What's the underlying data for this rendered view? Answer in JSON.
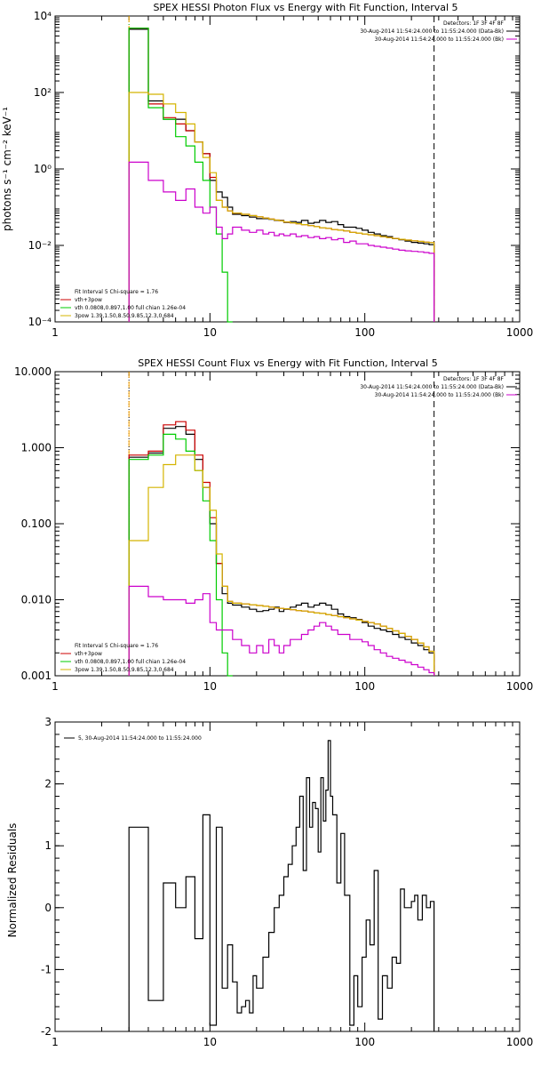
{
  "chart_data": [
    {
      "type": "line",
      "title": "SPEX HESSI Photon Flux vs Energy with Fit Function, Interval 5",
      "xlabel": "",
      "ylabel": "photons s⁻¹ cm⁻² keV⁻¹",
      "xscale": "log",
      "yscale": "log",
      "xlim": [
        1,
        1000
      ],
      "ylim": [
        0.0001,
        10000
      ],
      "xticks": [
        1,
        10,
        100,
        1000
      ],
      "xtick_labels": [
        "1",
        "10",
        "100",
        "1000"
      ],
      "yticks": [
        0.0001,
        0.01,
        1,
        100,
        10000
      ],
      "ytick_labels": [
        "10⁻⁴",
        "10⁻²",
        "10⁰",
        "10²",
        "10⁴"
      ],
      "vlines": [
        {
          "x": 3,
          "style": "dotted",
          "color": "#009900"
        },
        {
          "x": 3,
          "style": "dashed",
          "color": "#ffa500"
        },
        {
          "x": 280,
          "style": "dashed",
          "color": "#000000"
        }
      ],
      "legend_top_right": [
        {
          "text": "Detectors: 1F 3F 4F 8F",
          "color": "#000000"
        },
        {
          "text": "30-Aug-2014 11:54:24.000 to 11:55:24.000 (Data-Bk)",
          "color": "#000000"
        },
        {
          "text": "30-Aug-2014 11:54:24.000 to 11:55:24.000 (Bk)",
          "color": "#cc00cc"
        }
      ],
      "legend_bottom_left": [
        {
          "text": "Fit Interval 5   Chi-square = 1.76",
          "color": "#000000"
        },
        {
          "text": "vth+3pow",
          "color": "#cc0000"
        },
        {
          "text": "vth 0.0808,0.897,1.00  full chian 1.26e-04",
          "color": "#00cc00"
        },
        {
          "text": "3pow 1.39,1.50,8.50,9.85,12.3,0.684",
          "color": "#d4b400"
        }
      ],
      "x_edges": [
        3,
        4,
        5,
        6,
        7,
        8,
        9,
        10,
        11,
        12,
        13,
        14,
        16,
        18,
        20,
        22,
        24,
        26,
        28,
        30,
        33,
        36,
        39,
        43,
        47,
        51,
        56,
        61,
        67,
        73,
        80,
        88,
        96,
        105,
        115,
        126,
        138,
        151,
        166,
        182,
        200,
        220,
        240,
        260,
        280
      ],
      "series": [
        {
          "name": "Data-Bk",
          "color": "#000000",
          "values": [
            4500,
            60,
            20,
            20,
            10,
            5,
            2.5,
            0.5,
            0.25,
            0.18,
            0.1,
            0.065,
            0.06,
            0.055,
            0.05,
            0.05,
            0.048,
            0.045,
            0.045,
            0.04,
            0.042,
            0.04,
            0.045,
            0.038,
            0.04,
            0.045,
            0.04,
            0.042,
            0.035,
            0.03,
            0.03,
            0.028,
            0.025,
            0.022,
            0.02,
            0.018,
            0.017,
            0.015,
            0.014,
            0.013,
            0.012,
            0.0115,
            0.011,
            0.0105
          ]
        },
        {
          "name": "vth+3pow",
          "color": "#cc0000",
          "values": [
            4800,
            50,
            22,
            15,
            10,
            5,
            2.5,
            0.6,
            0.15,
            0.1,
            0.08,
            0.07,
            0.065,
            0.06,
            0.056,
            0.052,
            0.049,
            0.046,
            0.044,
            0.041,
            0.039,
            0.037,
            0.035,
            0.033,
            0.031,
            0.029,
            0.028,
            0.026,
            0.025,
            0.024,
            0.022,
            0.021,
            0.02,
            0.019,
            0.018,
            0.017,
            0.016,
            0.0152,
            0.0145,
            0.0138,
            0.0132,
            0.0127,
            0.0122,
            0.0118
          ]
        },
        {
          "name": "vth",
          "color": "#00cc00",
          "values": [
            4800,
            40,
            20,
            7,
            4,
            1.5,
            0.5,
            0.1,
            0.02,
            0.002,
            0.0001
          ]
        },
        {
          "name": "3pow",
          "color": "#d4b400",
          "values": [
            100,
            90,
            50,
            30,
            15,
            5,
            2,
            0.8,
            0.15,
            0.1,
            0.08,
            0.07,
            0.065,
            0.06,
            0.056,
            0.052,
            0.049,
            0.046,
            0.044,
            0.041,
            0.039,
            0.037,
            0.035,
            0.033,
            0.031,
            0.029,
            0.028,
            0.026,
            0.025,
            0.024,
            0.022,
            0.021,
            0.02,
            0.019,
            0.018,
            0.017,
            0.016,
            0.0152,
            0.0145,
            0.0138,
            0.0132,
            0.0127,
            0.0122,
            0.0118
          ]
        },
        {
          "name": "Bk",
          "color": "#cc00cc",
          "values": [
            1.5,
            0.5,
            0.25,
            0.15,
            0.3,
            0.1,
            0.07,
            0.1,
            0.03,
            0.015,
            0.02,
            0.03,
            0.025,
            0.022,
            0.025,
            0.02,
            0.022,
            0.018,
            0.02,
            0.018,
            0.02,
            0.017,
            0.018,
            0.016,
            0.017,
            0.015,
            0.016,
            0.014,
            0.015,
            0.012,
            0.013,
            0.011,
            0.011,
            0.01,
            0.0095,
            0.009,
            0.0085,
            0.008,
            0.0075,
            0.0072,
            0.007,
            0.0068,
            0.0065,
            0.0062
          ]
        }
      ]
    },
    {
      "type": "line",
      "title": "SPEX HESSI Count Flux vs Energy with Fit Function, Interval 5",
      "xlabel": "",
      "ylabel": "",
      "xscale": "log",
      "yscale": "log",
      "xlim": [
        1,
        1000
      ],
      "ylim": [
        0.001,
        10
      ],
      "xticks": [
        1,
        10,
        100,
        1000
      ],
      "xtick_labels": [
        "1",
        "10",
        "100",
        "1000"
      ],
      "yticks": [
        0.001,
        0.01,
        0.1,
        1,
        10
      ],
      "ytick_labels": [
        "0.001",
        "0.010",
        "0.100",
        "1.000",
        "10.000"
      ],
      "vlines": [
        {
          "x": 3,
          "style": "dotted",
          "color": "#000000"
        },
        {
          "x": 3,
          "style": "dashed",
          "color": "#ffa500"
        },
        {
          "x": 280,
          "style": "dashed",
          "color": "#000000"
        }
      ],
      "legend_top_right": [
        {
          "text": "Detectors: 1F 3F 4F 8F",
          "color": "#000000"
        },
        {
          "text": "30-Aug-2014 11:54:24.000 to 11:55:24.000 (Data-Bk)",
          "color": "#000000"
        },
        {
          "text": "30-Aug-2014 11:54:24.000 to 11:55:24.000 (Bk)",
          "color": "#cc00cc"
        }
      ],
      "legend_bottom_left": [
        {
          "text": "Fit Interval 5   Chi-square = 1.76",
          "color": "#000000"
        },
        {
          "text": "vth+3pow",
          "color": "#cc0000"
        },
        {
          "text": "vth 0.0808,0.897,1.00  full chian 1.26e-04",
          "color": "#00cc00"
        },
        {
          "text": "3pow 1.39,1.50,8.50,9.85,12.3,0.684",
          "color": "#d4b400"
        }
      ],
      "x_edges": [
        3,
        4,
        5,
        6,
        7,
        8,
        9,
        10,
        11,
        12,
        13,
        14,
        16,
        18,
        20,
        22,
        24,
        26,
        28,
        30,
        33,
        36,
        39,
        43,
        47,
        51,
        56,
        61,
        67,
        73,
        80,
        88,
        96,
        105,
        115,
        126,
        138,
        151,
        166,
        182,
        200,
        220,
        240,
        260,
        280
      ],
      "series": [
        {
          "name": "Data-Bk",
          "color": "#000000",
          "values": [
            0.75,
            0.85,
            1.8,
            1.9,
            1.5,
            0.7,
            0.3,
            0.1,
            0.03,
            0.012,
            0.009,
            0.0085,
            0.008,
            0.0075,
            0.007,
            0.0072,
            0.0075,
            0.008,
            0.007,
            0.0075,
            0.008,
            0.0085,
            0.009,
            0.008,
            0.0085,
            0.009,
            0.0085,
            0.0075,
            0.0065,
            0.006,
            0.0058,
            0.0055,
            0.005,
            0.0045,
            0.0042,
            0.004,
            0.0038,
            0.0035,
            0.0032,
            0.003,
            0.0027,
            0.0025,
            0.0022,
            0.002
          ]
        },
        {
          "name": "vth+3pow",
          "color": "#cc0000",
          "values": [
            0.8,
            0.9,
            2.0,
            2.2,
            1.7,
            0.8,
            0.35,
            0.12,
            0.03,
            0.015,
            0.0095,
            0.009,
            0.0088,
            0.0086,
            0.0084,
            0.0082,
            0.008,
            0.0078,
            0.0077,
            0.0076,
            0.0074,
            0.0072,
            0.0071,
            0.0069,
            0.0067,
            0.0066,
            0.0064,
            0.0062,
            0.006,
            0.0058,
            0.0056,
            0.0054,
            0.0052,
            0.005,
            0.0048,
            0.0045,
            0.0042,
            0.0039,
            0.0036,
            0.0033,
            0.003,
            0.0027,
            0.0024,
            0.0021
          ]
        },
        {
          "name": "vth",
          "color": "#00cc00",
          "values": [
            0.7,
            0.8,
            1.5,
            1.3,
            0.9,
            0.5,
            0.2,
            0.06,
            0.01,
            0.002,
            0.0009
          ]
        },
        {
          "name": "3pow",
          "color": "#d4b400",
          "values": [
            0.06,
            0.3,
            0.6,
            0.8,
            0.8,
            0.5,
            0.3,
            0.15,
            0.04,
            0.015,
            0.0095,
            0.009,
            0.0088,
            0.0086,
            0.0084,
            0.0082,
            0.008,
            0.0078,
            0.0077,
            0.0076,
            0.0074,
            0.0072,
            0.0071,
            0.0069,
            0.0067,
            0.0066,
            0.0064,
            0.0062,
            0.006,
            0.0058,
            0.0056,
            0.0054,
            0.0052,
            0.005,
            0.0048,
            0.0045,
            0.0042,
            0.0039,
            0.0036,
            0.0033,
            0.003,
            0.0027,
            0.0024,
            0.0021
          ]
        },
        {
          "name": "Bk",
          "color": "#cc00cc",
          "values": [
            0.015,
            0.011,
            0.01,
            0.01,
            0.009,
            0.01,
            0.012,
            0.005,
            0.004,
            0.004,
            0.004,
            0.003,
            0.0025,
            0.002,
            0.0025,
            0.002,
            0.003,
            0.0025,
            0.002,
            0.0025,
            0.003,
            0.003,
            0.0035,
            0.004,
            0.0045,
            0.005,
            0.0045,
            0.004,
            0.0035,
            0.0035,
            0.003,
            0.003,
            0.0028,
            0.0025,
            0.0022,
            0.002,
            0.0018,
            0.0017,
            0.0016,
            0.0015,
            0.0014,
            0.0013,
            0.0012,
            0.0011
          ]
        }
      ]
    },
    {
      "type": "line",
      "title": "",
      "xlabel": "",
      "ylabel": "Normalized Residuals",
      "xscale": "log",
      "yscale": "linear",
      "xlim": [
        1,
        1000
      ],
      "ylim": [
        -2,
        3
      ],
      "xticks": [
        1,
        10,
        100,
        1000
      ],
      "xtick_labels": [
        "1",
        "10",
        "100",
        "1000"
      ],
      "yticks": [
        -2,
        -1,
        0,
        1,
        2,
        3
      ],
      "ytick_labels": [
        "-2",
        "-1",
        "0",
        "1",
        "2",
        "3"
      ],
      "legend_top_left": [
        {
          "text": "5, 30-Aug-2014 11:54:24.000 to 11:55:24.000",
          "color": "#000000"
        }
      ],
      "x_edges": [
        3,
        4,
        5,
        6,
        7,
        8,
        9,
        10,
        11,
        12,
        13,
        14,
        15,
        16,
        17,
        18,
        19,
        20,
        22,
        24,
        26,
        28,
        30,
        32,
        34,
        36,
        38,
        40,
        42,
        44,
        46,
        48,
        50,
        52,
        54,
        56,
        58,
        60,
        62,
        66,
        70,
        74,
        80,
        85,
        90,
        96,
        102,
        108,
        115,
        122,
        130,
        140,
        150,
        160,
        170,
        180,
        190,
        200,
        210,
        220,
        235,
        250,
        265,
        280
      ],
      "series": [
        {
          "name": "",
          "color": "#000000",
          "values": [
            1.3,
            -1.5,
            0.4,
            0,
            0.5,
            -0.5,
            1.5,
            -1.9,
            1.3,
            -1.3,
            -0.6,
            -1.2,
            -1.7,
            -1.6,
            -1.5,
            -1.7,
            -1.1,
            -1.3,
            -0.8,
            -0.4,
            0,
            0.2,
            0.5,
            0.7,
            1.0,
            1.3,
            1.8,
            0.6,
            2.1,
            1.3,
            1.7,
            1.6,
            0.9,
            2.1,
            1.4,
            1.9,
            2.7,
            1.8,
            1.5,
            0.4,
            1.2,
            0.2,
            -1.9,
            -1.1,
            -1.6,
            -0.8,
            -0.2,
            -0.6,
            0.6,
            -1.8,
            -1.1,
            -1.3,
            -0.8,
            -0.9,
            0.3,
            0,
            0,
            0.1,
            0.2,
            -0.2,
            0.2,
            0,
            0.1
          ]
        }
      ]
    }
  ]
}
